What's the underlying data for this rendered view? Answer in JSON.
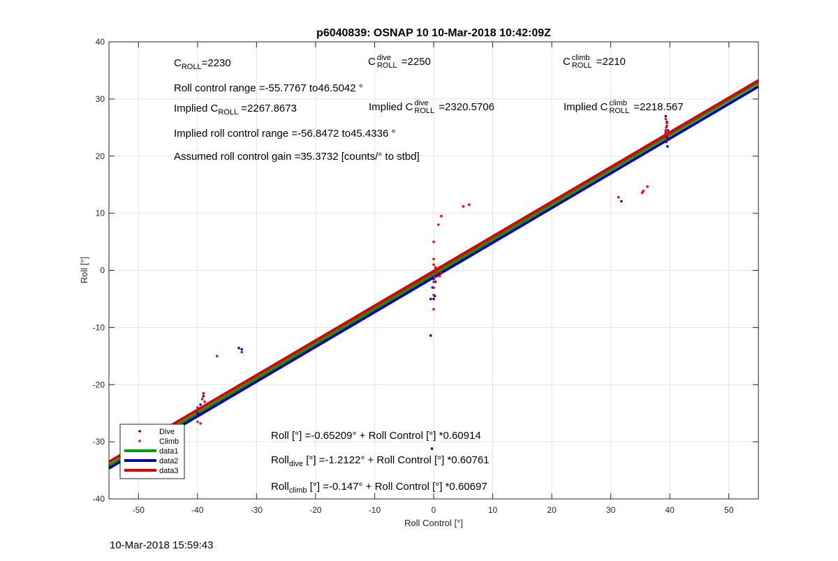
{
  "chart_data": {
    "type": "scatter",
    "title": "p6040839: OSNAP 10 10-Mar-2018 10:42:09Z",
    "xlabel": "Roll Control [°]",
    "ylabel": "Roll [°]",
    "xlim": [
      -55,
      55
    ],
    "ylim": [
      -40,
      40
    ],
    "xticks": [
      -50,
      -40,
      -30,
      -20,
      -10,
      0,
      10,
      20,
      30,
      40,
      50
    ],
    "yticks": [
      -40,
      -30,
      -20,
      -10,
      0,
      10,
      20,
      30,
      40
    ],
    "grid": true,
    "legend_position": "bottom-left",
    "series": [
      {
        "name": "Dive",
        "kind": "points",
        "color": "#0000ff",
        "points": [
          [
            -49.5,
            -28.5
          ],
          [
            -39.5,
            -23.5
          ],
          [
            -39,
            -22
          ],
          [
            -40,
            -25
          ],
          [
            -33,
            -13.6
          ],
          [
            -32.5,
            -13.8
          ],
          [
            -0.5,
            -11.4
          ],
          [
            -0.3,
            -31.2
          ],
          [
            -0.5,
            -5
          ],
          [
            0.2,
            -4.5
          ],
          [
            0,
            -5
          ],
          [
            -0.2,
            -3
          ],
          [
            0,
            -1.5
          ],
          [
            0.3,
            -2
          ],
          [
            0.5,
            -1
          ],
          [
            31.8,
            12.1
          ],
          [
            39.3,
            27
          ],
          [
            39.6,
            21.7
          ],
          [
            39.4,
            22.5
          ],
          [
            39.5,
            26
          ],
          [
            39.7,
            24.5
          ],
          [
            39.5,
            23.2
          ]
        ]
      },
      {
        "name": "Climb",
        "kind": "points",
        "color": "#ff0000",
        "points": [
          [
            -40,
            -26.5
          ],
          [
            -39.5,
            -26.8
          ],
          [
            -40,
            -24
          ],
          [
            -39,
            -21.5
          ],
          [
            -39.2,
            -22.5
          ],
          [
            -38.8,
            -23
          ],
          [
            -36.7,
            -15
          ],
          [
            -32.5,
            -14.3
          ],
          [
            0,
            -6.8
          ],
          [
            0,
            -4.3
          ],
          [
            0,
            -3
          ],
          [
            0,
            -2
          ],
          [
            0.2,
            -1.2
          ],
          [
            0.5,
            -0.5
          ],
          [
            1,
            -1
          ],
          [
            1.2,
            -0.3
          ],
          [
            0,
            5
          ],
          [
            0,
            2
          ],
          [
            0,
            1
          ],
          [
            0.3,
            0.5
          ],
          [
            0.8,
            8
          ],
          [
            1.3,
            9.5
          ],
          [
            5,
            11.2
          ],
          [
            6,
            11.5
          ],
          [
            31.3,
            12.8
          ],
          [
            35.3,
            13.6
          ],
          [
            35.5,
            13.9
          ],
          [
            36.2,
            14.7
          ],
          [
            39.2,
            23.8
          ],
          [
            39.3,
            24.5
          ],
          [
            39.4,
            25
          ],
          [
            39.5,
            25.8
          ],
          [
            39.3,
            26.5
          ],
          [
            39.6,
            24
          ],
          [
            39.4,
            23
          ],
          [
            39.5,
            25.3
          ],
          [
            39.3,
            24.2
          ]
        ]
      },
      {
        "name": "data1",
        "kind": "line",
        "color": "#00a000",
        "intercept": -0.65209,
        "slope": 0.60914
      },
      {
        "name": "data2",
        "kind": "line",
        "color": "#0000b4",
        "intercept": -1.2122,
        "slope": 0.60761
      },
      {
        "name": "data3",
        "kind": "line",
        "color": "#dd0000",
        "intercept": -0.147,
        "slope": 0.60697
      }
    ]
  },
  "annotations": {
    "c": "C",
    "roll_sub": "ROLL",
    "dive_sup": "dive",
    "climb_sup": "climb",
    "c_roll_value": "=2230",
    "c_dive_value": " =2250",
    "c_climb_value": " =2210",
    "roll_range": "Roll control range =-55.7767 to46.5042 °",
    "implied_prefix": "Implied ",
    "implied_c_roll_value": " =2267.8673",
    "implied_c_dive_value": " =2320.5706",
    "implied_c_climb_value": " =2218.567",
    "implied_range": "Implied roll control range =-56.8472 to45.4336 °",
    "gain": "Assumed roll control gain =35.3732 [counts/° to stbd]",
    "fit_all": "Roll [°] =-0.65209° + Roll Control [°] *0.60914",
    "fit_dive_lhs": "Roll",
    "fit_dive_sub": "dive",
    "fit_dive_rhs": " [°] =-1.2122° + Roll Control [°] *0.60761",
    "fit_climb_lhs": "Roll",
    "fit_climb_sub": "climb",
    "fit_climb_rhs": " [°] =-0.147° + Roll Control [°] *0.60697"
  },
  "timestamp": "10-Mar-2018 15:59:43"
}
